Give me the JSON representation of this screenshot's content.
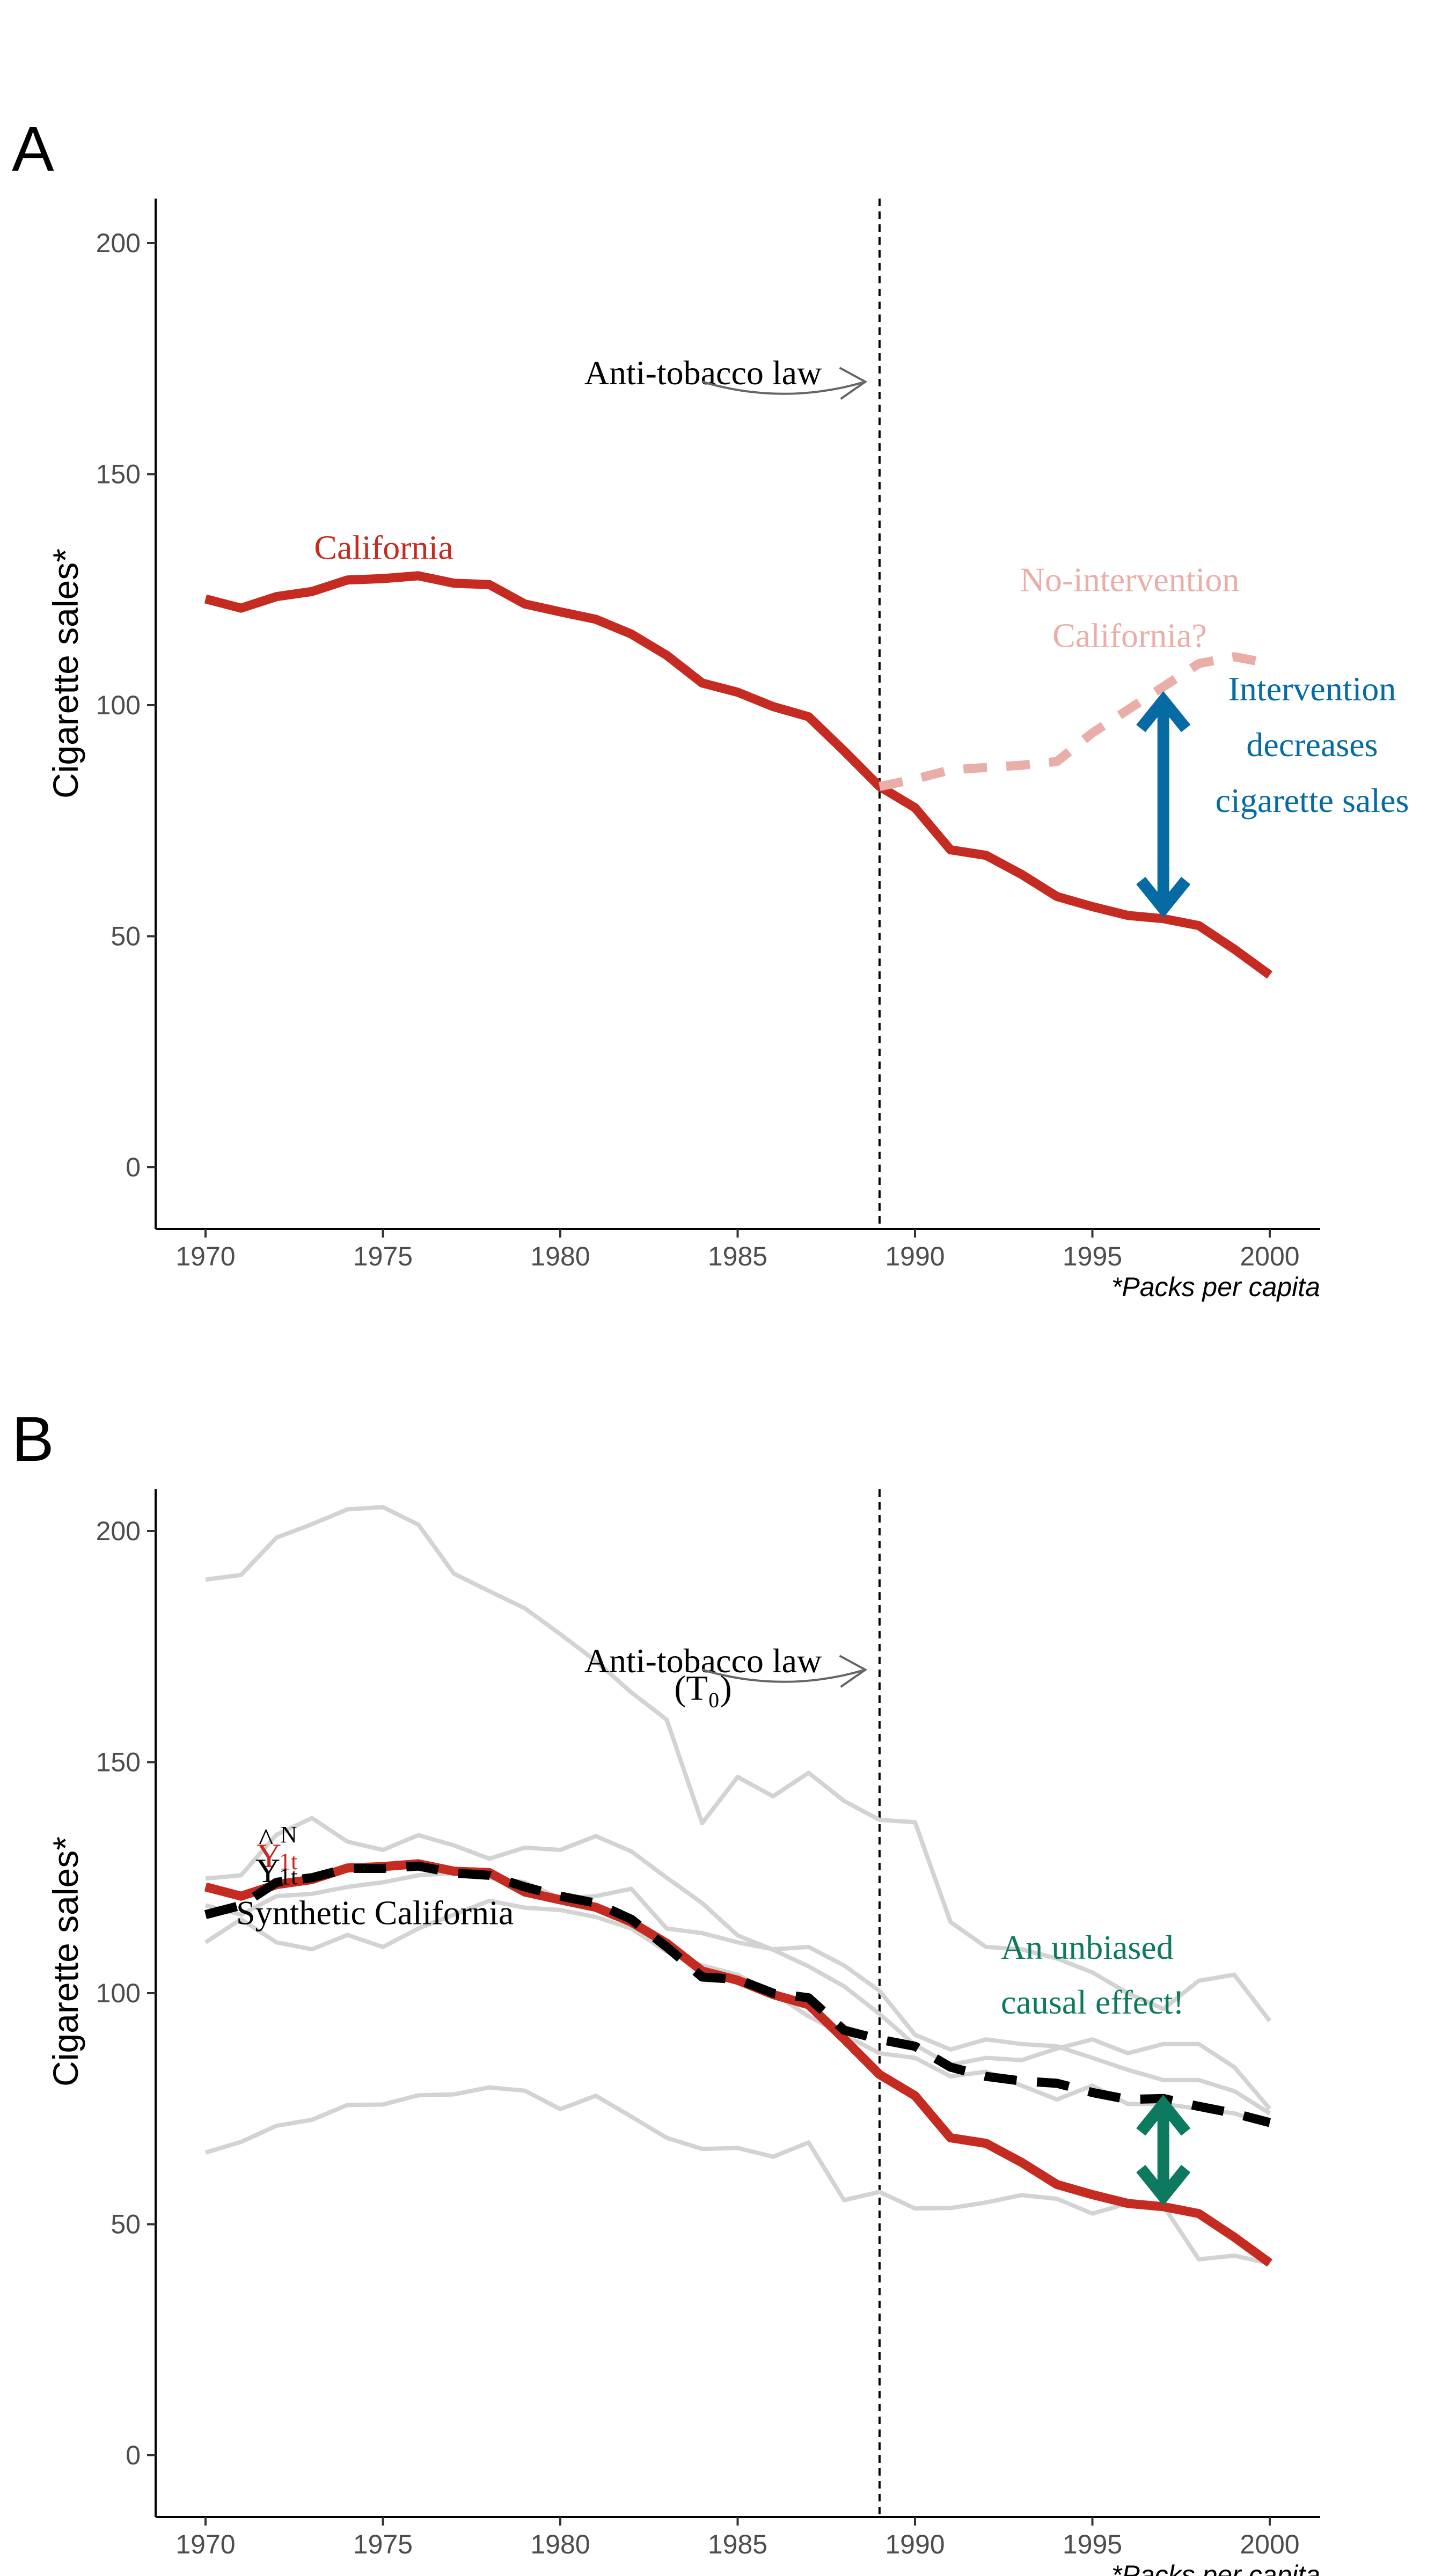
{
  "colors": {
    "california": "#c62b21",
    "nointervention": "#eaaea9",
    "intervention": "#066aa3",
    "unbiased": "#0d7a60",
    "donor": "#d3d3d3",
    "synthetic": "#000000",
    "annotation_arrow": "#666666"
  },
  "x_caption": "*Packs per capita",
  "chart_data": [
    {
      "panel_label": "A",
      "type": "line",
      "ylabel": "Cigarette sales*",
      "xlim": [
        1969,
        2001.5
      ],
      "ylim": [
        -10,
        210
      ],
      "x_ticks": [
        1970,
        1975,
        1980,
        1985,
        1990,
        1995,
        2000
      ],
      "y_ticks": [
        0,
        50,
        100,
        150,
        200
      ],
      "intervention_year": 1989,
      "series": [
        {
          "name": "California",
          "style": "solid",
          "x": [
            1970,
            1971,
            1972,
            1973,
            1974,
            1975,
            1976,
            1977,
            1978,
            1979,
            1980,
            1981,
            1982,
            1983,
            1984,
            1985,
            1986,
            1987,
            1988,
            1989,
            1990,
            1991,
            1992,
            1993,
            1994,
            1995,
            1996,
            1997,
            1998,
            1999,
            2000
          ],
          "y": [
            123,
            121,
            123.5,
            124.6,
            127.1,
            127.4,
            128,
            126.4,
            126.1,
            121.9,
            120.2,
            118.6,
            115.4,
            110.8,
            104.8,
            102.8,
            99.7,
            97.5,
            90.1,
            82.4,
            77.8,
            68.7,
            67.5,
            63.4,
            58.6,
            56.4,
            54.5,
            53.8,
            52.3,
            47.2,
            41.6
          ]
        },
        {
          "name": "No-intervention California?",
          "style": "dashed",
          "x": [
            1989,
            1990,
            1991,
            1992,
            1993,
            1994,
            1995,
            1996,
            1997,
            1998,
            1999,
            2000
          ],
          "y": [
            82.4,
            84,
            86,
            86.5,
            87,
            87.8,
            94,
            99,
            104,
            109,
            110.5,
            109
          ]
        }
      ],
      "annotations": {
        "law_label": "Anti-tobacco law",
        "california_label": "California",
        "nointervention_label": [
          "No-intervention",
          "California?"
        ],
        "effect_label": [
          "Intervention",
          "decreases",
          "cigarette sales"
        ],
        "effect_arrow": {
          "x": 1997,
          "y_from": 56,
          "y_to": 101
        }
      }
    },
    {
      "panel_label": "B",
      "type": "line",
      "ylabel": "Cigarette sales*",
      "xlim": [
        1969,
        2001.5
      ],
      "ylim": [
        -10,
        210
      ],
      "x_ticks": [
        1970,
        1975,
        1980,
        1985,
        1990,
        1995,
        2000
      ],
      "y_ticks": [
        0,
        50,
        100,
        150,
        200
      ],
      "intervention_year": 1989,
      "donor_series": [
        {
          "x": [
            1970,
            1971,
            1972,
            1973,
            1974,
            1975,
            1976,
            1977,
            1978,
            1979,
            1980,
            1981,
            1982,
            1983,
            1984,
            1985,
            1986,
            1987,
            1988,
            1989,
            1990,
            1991,
            1992,
            1993,
            1994,
            1995,
            1996,
            1997,
            1998,
            1999,
            2000
          ],
          "y": [
            189.5,
            190.5,
            198.6,
            201.5,
            204.7,
            205.2,
            201.4,
            190.8,
            187,
            183.3,
            177.7,
            171.9,
            165.1,
            159.2,
            136.8,
            146.8,
            142.6,
            147.7,
            141.6,
            137.5,
            137,
            115.4,
            110,
            109.5,
            107.5,
            104.5,
            100,
            96.6,
            102.7,
            104,
            94
          ]
        },
        {
          "x": [
            1970,
            1971,
            1972,
            1973,
            1974,
            1975,
            1976,
            1977,
            1978,
            1979,
            1980,
            1981,
            1982,
            1983,
            1984,
            1985,
            1986,
            1987,
            1988,
            1989,
            1990,
            1991,
            1992,
            1993,
            1994,
            1995,
            1996,
            1997,
            1998,
            1999,
            2000
          ],
          "y": [
            124.8,
            125.5,
            134.3,
            137.9,
            132.8,
            131,
            134.2,
            132,
            129.1,
            131.5,
            131,
            134,
            130.7,
            125,
            119.5,
            112.5,
            109.4,
            105.8,
            101.5,
            95.5,
            88.8,
            84.5,
            86,
            85.5,
            88,
            90,
            87,
            89,
            89,
            84,
            75
          ]
        },
        {
          "x": [
            1970,
            1971,
            1972,
            1973,
            1974,
            1975,
            1976,
            1977,
            1978,
            1979,
            1980,
            1981,
            1982,
            1983,
            1984,
            1985,
            1986,
            1987,
            1988,
            1989,
            1990,
            1991,
            1992,
            1993,
            1994,
            1995,
            1996,
            1997,
            1998,
            1999,
            2000
          ],
          "y": [
            119,
            117,
            121,
            121.5,
            123,
            124,
            125.5,
            126,
            125,
            124,
            120.5,
            121,
            122.6,
            114,
            113,
            111,
            109.5,
            110,
            106,
            100.5,
            91,
            87.8,
            90,
            89,
            88.5,
            86,
            83.4,
            81.2,
            81.2,
            78.8,
            74
          ]
        },
        {
          "x": [
            1970,
            1971,
            1972,
            1973,
            1974,
            1975,
            1976,
            1977,
            1978,
            1979,
            1980,
            1981,
            1982,
            1983,
            1984,
            1985,
            1986,
            1987,
            1988,
            1989,
            1990,
            1991,
            1992,
            1993,
            1994,
            1995,
            1996,
            1997,
            1998,
            1999,
            2000
          ],
          "y": [
            111,
            116,
            111,
            109.5,
            112.6,
            110,
            114,
            117,
            120,
            118.5,
            118,
            116.5,
            114,
            109,
            106,
            104,
            100,
            95,
            91,
            87,
            86,
            82,
            83,
            80,
            77,
            80,
            76,
            76,
            75,
            74,
            71.5
          ]
        },
        {
          "x": [
            1970,
            1971,
            1972,
            1973,
            1974,
            1975,
            1976,
            1977,
            1978,
            1979,
            1980,
            1981,
            1982,
            1983,
            1984,
            1985,
            1986,
            1987,
            1988,
            1989,
            1990,
            1991,
            1992,
            1993,
            1994,
            1995,
            1996,
            1997,
            1998,
            1999,
            2000
          ],
          "y": [
            65.5,
            67.8,
            71.3,
            72.6,
            75.8,
            75.9,
            77.9,
            78.1,
            79.6,
            78.9,
            74.9,
            77.8,
            73.3,
            68.7,
            66.3,
            66.5,
            64.6,
            67.7,
            55.2,
            57,
            53.4,
            53.5,
            54.7,
            56.3,
            55.5,
            52.3,
            54.5,
            54,
            42.4,
            43.2,
            41.5
          ]
        }
      ],
      "series": [
        {
          "name": "California",
          "style": "solid",
          "x": [
            1970,
            1971,
            1972,
            1973,
            1974,
            1975,
            1976,
            1977,
            1978,
            1979,
            1980,
            1981,
            1982,
            1983,
            1984,
            1985,
            1986,
            1987,
            1988,
            1989,
            1990,
            1991,
            1992,
            1993,
            1994,
            1995,
            1996,
            1997,
            1998,
            1999,
            2000
          ],
          "y": [
            123,
            121,
            123.5,
            124.6,
            127.1,
            127.4,
            128,
            126.4,
            126.1,
            121.9,
            120.2,
            118.6,
            115.4,
            110.8,
            104.8,
            102.8,
            99.7,
            97.5,
            90.1,
            82.4,
            77.8,
            68.7,
            67.5,
            63.4,
            58.6,
            56.4,
            54.5,
            53.8,
            52.3,
            47.2,
            41.6
          ]
        },
        {
          "name": "Synthetic California",
          "style": "dashed",
          "x": [
            1970,
            1971,
            1972,
            1973,
            1974,
            1975,
            1976,
            1977,
            1978,
            1979,
            1980,
            1981,
            1982,
            1983,
            1984,
            1985,
            1986,
            1987,
            1988,
            1989,
            1990,
            1991,
            1992,
            1993,
            1994,
            1995,
            1996,
            1997,
            1998,
            1999,
            2000
          ],
          "y": [
            117,
            119,
            124,
            125,
            127,
            127,
            127.5,
            126,
            125.5,
            123,
            121,
            119.5,
            116,
            110,
            103.5,
            103,
            100,
            99,
            92,
            90,
            88.5,
            84,
            82,
            81,
            80.5,
            78.5,
            77,
            77.2,
            75.5,
            74,
            72
          ]
        }
      ],
      "annotations": {
        "law_label": "Anti-tobacco law",
        "t0_label": "(T₀)",
        "synthetic_label": "Synthetic California",
        "yhat_label": {
          "base": "Y",
          "hat": "^",
          "sup": "N",
          "sub": "1t"
        },
        "y_label": {
          "base": "Y",
          "sub": "1t"
        },
        "effect_label": [
          "An unbiased",
          "causal effect!"
        ],
        "effect_arrow": {
          "x": 1997,
          "y_from": 56,
          "y_to": 76
        }
      }
    }
  ]
}
